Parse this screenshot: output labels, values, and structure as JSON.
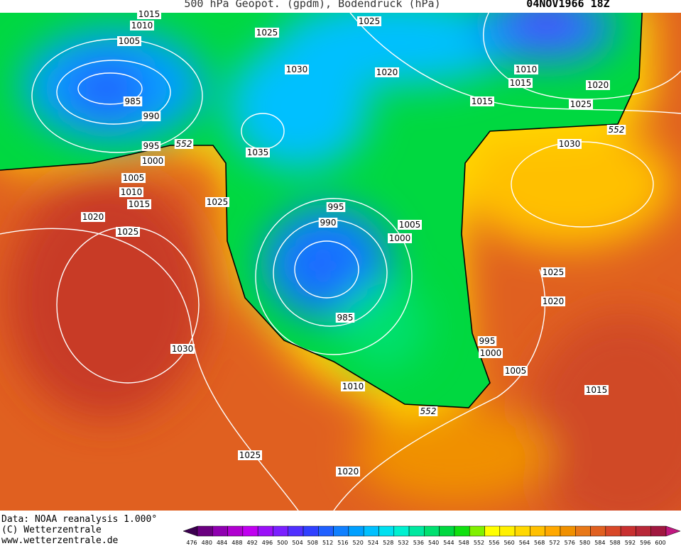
{
  "header": {
    "title": "500 hPa Geopot. (gpdm), Bodendruck (hPa)",
    "date": "04NOV1966 18Z"
  },
  "isobar_labels": [
    1015,
    1010,
    1005,
    1025,
    1025,
    1030,
    1020,
    1010,
    1015,
    1020,
    1015,
    1025,
    985,
    990,
    995,
    1000,
    1005,
    1010,
    1015,
    1020,
    1025,
    1035,
    1025,
    1030,
    995,
    990,
    1005,
    1000,
    985,
    1025,
    1020,
    995,
    1000,
    1005,
    1010,
    1015,
    1030,
    1025,
    1020
  ],
  "geopotential_labels": [
    552,
    552,
    552
  ],
  "footer": {
    "lines": [
      "Data: NOAA reanalysis 1.000°",
      "(C) Wetterzentrale",
      "www.wetterzentrale.de"
    ]
  },
  "colorbar": {
    "labels": [
      476,
      480,
      484,
      488,
      492,
      496,
      500,
      504,
      508,
      512,
      516,
      520,
      524,
      528,
      532,
      536,
      540,
      544,
      548,
      552,
      556,
      560,
      564,
      568,
      572,
      576,
      580,
      584,
      588,
      592,
      596,
      600
    ],
    "colors": [
      "#3c0050",
      "#6a0080",
      "#8f00b0",
      "#b000d0",
      "#c000f0",
      "#9a10f8",
      "#7a20ff",
      "#5030ff",
      "#3040ff",
      "#2060ff",
      "#1080ff",
      "#00a0ff",
      "#00c0ff",
      "#00e0f0",
      "#00f0d0",
      "#00e8a0",
      "#00e070",
      "#00d840",
      "#10e010",
      "#80f000",
      "#ffff00",
      "#fff000",
      "#ffd800",
      "#ffc000",
      "#ffa800",
      "#f09000",
      "#e87818",
      "#e06020",
      "#d84828",
      "#c83030",
      "#b82838",
      "#a01840",
      "#c01880"
    ]
  }
}
